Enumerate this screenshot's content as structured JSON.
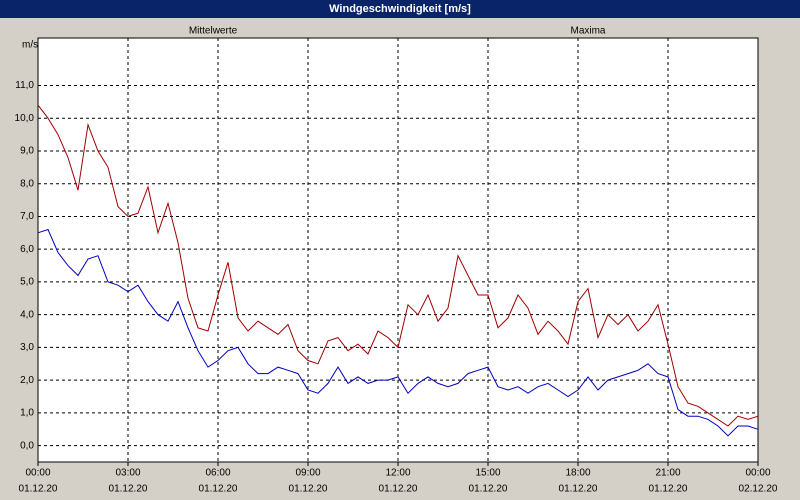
{
  "chart_data": {
    "type": "line",
    "title": "Windgeschwindigkeit [m/s]",
    "y_label": "m/s",
    "x": [
      0,
      20,
      40,
      60,
      80,
      100,
      120,
      140,
      160,
      180,
      200,
      220,
      240,
      260,
      280,
      300,
      320,
      340,
      360,
      380,
      400,
      420,
      440,
      460,
      480,
      500,
      520,
      540,
      560,
      580,
      600,
      620,
      640,
      660,
      680,
      700,
      720,
      740,
      760,
      780,
      800,
      820,
      840,
      860,
      880,
      900,
      920,
      940,
      960,
      980,
      1000,
      1020,
      1040,
      1060,
      1080,
      1100,
      1120,
      1140,
      1160,
      1180,
      1200,
      1220,
      1240,
      1260,
      1280,
      1300,
      1320,
      1340,
      1360,
      1380,
      1400,
      1420,
      1440
    ],
    "series": [
      {
        "name": "Mittelwerte",
        "color": "#0000c0",
        "values": [
          6.5,
          6.6,
          5.9,
          5.5,
          5.2,
          5.7,
          5.8,
          5.0,
          4.9,
          4.7,
          4.9,
          4.4,
          4.0,
          3.8,
          4.4,
          3.6,
          2.9,
          2.4,
          2.6,
          2.9,
          3.0,
          2.5,
          2.2,
          2.2,
          2.4,
          2.3,
          2.2,
          1.7,
          1.6,
          1.9,
          2.4,
          1.9,
          2.1,
          1.9,
          2.0,
          2.0,
          2.1,
          1.6,
          1.9,
          2.1,
          1.9,
          1.8,
          1.9,
          2.2,
          2.3,
          2.4,
          1.8,
          1.7,
          1.8,
          1.6,
          1.8,
          1.9,
          1.7,
          1.5,
          1.7,
          2.1,
          1.7,
          2.0,
          2.1,
          2.2,
          2.3,
          2.5,
          2.2,
          2.1,
          1.1,
          0.9,
          0.9,
          0.8,
          0.6,
          0.3,
          0.6,
          0.6,
          0.5
        ]
      },
      {
        "name": "Maxima",
        "color": "#a00000",
        "values": [
          10.4,
          10.0,
          9.5,
          8.8,
          7.8,
          9.8,
          9.0,
          8.5,
          7.3,
          7.0,
          7.1,
          7.9,
          6.5,
          7.4,
          6.2,
          4.5,
          3.6,
          3.5,
          4.6,
          5.6,
          3.9,
          3.5,
          3.8,
          3.6,
          3.4,
          3.7,
          2.9,
          2.6,
          2.5,
          3.2,
          3.3,
          2.9,
          3.1,
          2.8,
          3.5,
          3.3,
          3.0,
          4.3,
          4.0,
          4.6,
          3.8,
          4.2,
          5.8,
          5.2,
          4.6,
          4.6,
          3.6,
          3.9,
          4.6,
          4.2,
          3.4,
          3.8,
          3.5,
          3.1,
          4.4,
          4.8,
          3.3,
          4.0,
          3.7,
          4.0,
          3.5,
          3.8,
          4.3,
          3.1,
          1.8,
          1.3,
          1.2,
          1.0,
          0.8,
          0.6,
          0.9,
          0.8,
          0.9
        ]
      }
    ],
    "xlim": [
      0,
      1440
    ],
    "xticks": [
      {
        "value": 0,
        "label": "00:00"
      },
      {
        "value": 180,
        "label": "03:00"
      },
      {
        "value": 360,
        "label": "06:00"
      },
      {
        "value": 540,
        "label": "09:00"
      },
      {
        "value": 720,
        "label": "12:00"
      },
      {
        "value": 900,
        "label": "15:00"
      },
      {
        "value": 1080,
        "label": "18:00"
      },
      {
        "value": 1260,
        "label": "21:00"
      },
      {
        "value": 1440,
        "label": "00:00"
      }
    ],
    "xtick_dates": [
      "01.12.20",
      "01.12.20",
      "01.12.20",
      "01.12.20",
      "01.12.20",
      "01.12.20",
      "01.12.20",
      "01.12.20",
      "02.12.20"
    ],
    "ylim": [
      -0.5,
      12.45
    ],
    "yticks": [
      {
        "value": 0,
        "label": "0,0"
      },
      {
        "value": 1,
        "label": "1,0"
      },
      {
        "value": 2,
        "label": "2,0"
      },
      {
        "value": 3,
        "label": "3,0"
      },
      {
        "value": 4,
        "label": "4,0"
      },
      {
        "value": 5,
        "label": "5,0"
      },
      {
        "value": 6,
        "label": "6,0"
      },
      {
        "value": 7,
        "label": "7,0"
      },
      {
        "value": 8,
        "label": "8,0"
      },
      {
        "value": 9,
        "label": "9,0"
      },
      {
        "value": 10,
        "label": "10,0"
      },
      {
        "value": 11,
        "label": "11,0"
      }
    ],
    "grid": true
  }
}
